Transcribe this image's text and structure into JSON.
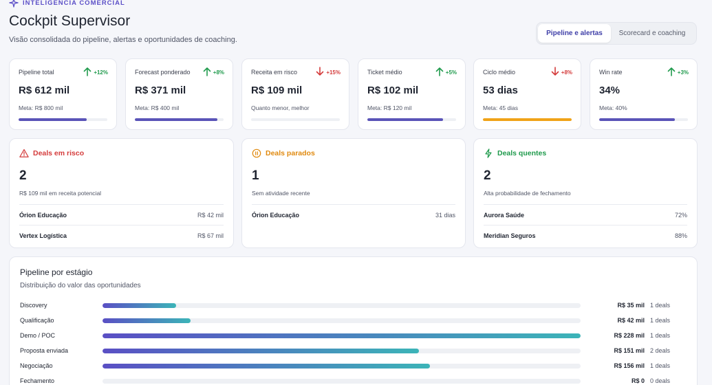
{
  "header": {
    "eyebrow": "INTELIGÊNCIA COMERCIAL",
    "title": "Cockpit Supervisor",
    "subtitle": "Visão consolidada do pipeline, alertas e oportunidades de coaching."
  },
  "tabs": [
    {
      "label": "Pipeline e alertas",
      "active": true
    },
    {
      "label": "Scorecard e coaching",
      "active": false
    }
  ],
  "kpis": [
    {
      "label": "Pipeline total",
      "trend": "+12%",
      "direction": "up",
      "value": "R$ 612 mil",
      "meta": "Meta: R$ 800 mil",
      "progress": 0.77,
      "bar_color": "#5a54b8"
    },
    {
      "label": "Forecast ponderado",
      "trend": "+8%",
      "direction": "up",
      "value": "R$ 371 mil",
      "meta": "Meta: R$ 400 mil",
      "progress": 0.93,
      "bar_color": "#5a54b8"
    },
    {
      "label": "Receita em risco",
      "trend": "+15%",
      "direction": "down",
      "value": "R$ 109 mil",
      "meta": "Quanto menor, melhor",
      "progress": 0,
      "bar_color": "#5a54b8"
    },
    {
      "label": "Ticket médio",
      "trend": "+5%",
      "direction": "up",
      "value": "R$ 102 mil",
      "meta": "Meta: R$ 120 mil",
      "progress": 0.85,
      "bar_color": "#5a54b8"
    },
    {
      "label": "Ciclo médio",
      "trend": "+8%",
      "direction": "down",
      "value": "53 dias",
      "meta": "Meta: 45 dias",
      "progress": 1.0,
      "bar_color": "#f0a318"
    },
    {
      "label": "Win rate",
      "trend": "+3%",
      "direction": "up",
      "value": "34%",
      "meta": "Meta: 40%",
      "progress": 0.85,
      "bar_color": "#5a54b8"
    }
  ],
  "alerts": [
    {
      "title": "Deals em risco",
      "icon": "warning-triangle-icon",
      "color": "#d43b3b",
      "count": "2",
      "desc": "R$ 109 mil em receita potencial",
      "rows": [
        {
          "name": "Órion Educação",
          "value": "R$ 42 mil"
        },
        {
          "name": "Vertex Logística",
          "value": "R$ 67 mil"
        }
      ]
    },
    {
      "title": "Deals parados",
      "icon": "pause-circle-icon",
      "color": "#e08a10",
      "count": "1",
      "desc": "Sem atividade recente",
      "rows": [
        {
          "name": "Órion Educação",
          "value": "31 dias"
        }
      ]
    },
    {
      "title": "Deals quentes",
      "icon": "lightning-icon",
      "color": "#1f9a4c",
      "count": "2",
      "desc": "Alta probabilidade de fechamento",
      "rows": [
        {
          "name": "Aurora Saúde",
          "value": "72%"
        },
        {
          "name": "Meridian Seguros",
          "value": "88%"
        }
      ]
    }
  ],
  "pipeline": {
    "title": "Pipeline por estágio",
    "subtitle": "Distribuição do valor das oportunidades",
    "stages": [
      {
        "name": "Discovery",
        "value": "R$ 35 mil",
        "deals": "1 deals",
        "amount": 35
      },
      {
        "name": "Qualificação",
        "value": "R$ 42 mil",
        "deals": "1 deals",
        "amount": 42
      },
      {
        "name": "Demo / POC",
        "value": "R$ 228 mil",
        "deals": "1 deals",
        "amount": 228
      },
      {
        "name": "Proposta enviada",
        "value": "R$ 151 mil",
        "deals": "2 deals",
        "amount": 151
      },
      {
        "name": "Negociação",
        "value": "R$ 156 mil",
        "deals": "1 deals",
        "amount": 156
      },
      {
        "name": "Fechamento",
        "value": "R$ 0",
        "deals": "0 deals",
        "amount": 0
      }
    ]
  }
}
